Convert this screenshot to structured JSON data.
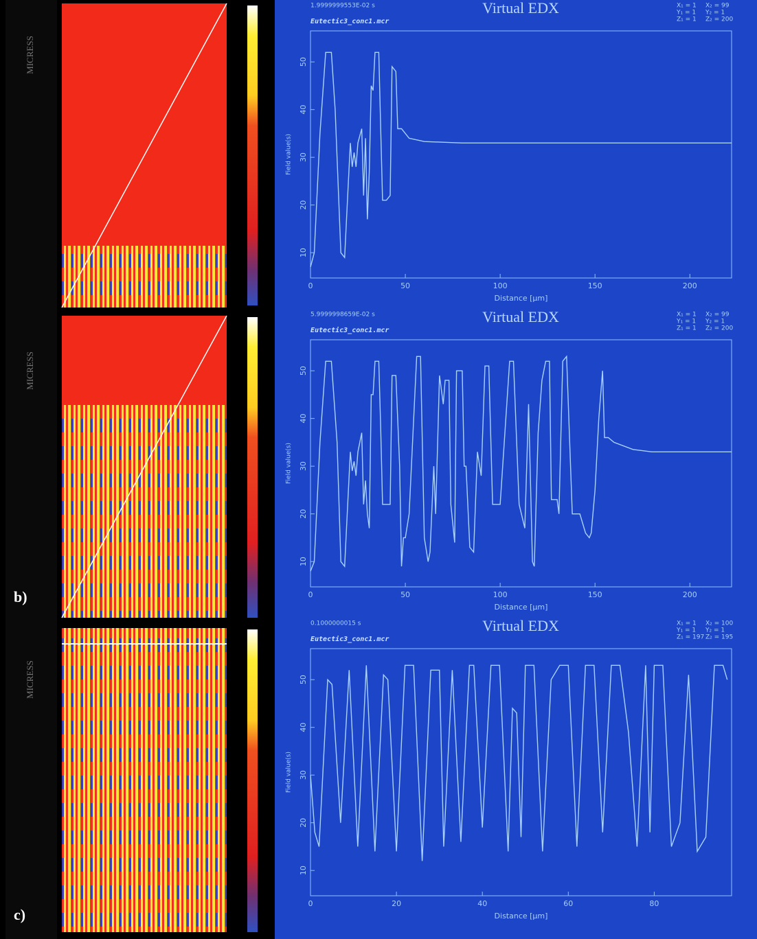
{
  "micress_labels": [
    "MICRESS",
    "MICRESS",
    "MICRESS"
  ],
  "panel_labels": [
    "b)",
    "c)"
  ],
  "chart_data": [
    {
      "type": "line",
      "title": "Virtual EDX",
      "time": "1.9999999553E-02 s",
      "file": "Eutectic3_conc1.mcr",
      "coords": [
        "X₁ = 1",
        "X₂ = 99",
        "Y₁ = 1",
        "Y₂ = 1",
        "Z₁ = 1",
        "Z₂ = 200"
      ],
      "x_label": "Distance [μm]",
      "y_label": "Field value(s)",
      "color": "#a9d2ff",
      "xlim": [
        0,
        222
      ],
      "xticks": [
        0,
        50,
        100,
        150,
        200
      ],
      "ylim": [
        4.7,
        56.5
      ],
      "yticks": [
        10,
        20,
        30,
        40,
        50
      ],
      "x": [
        0,
        2,
        5,
        8,
        11,
        13,
        16,
        18,
        20,
        21,
        22,
        23,
        24,
        25,
        27,
        28,
        29,
        30,
        31,
        32,
        33,
        34,
        36,
        37,
        38,
        40,
        42,
        43,
        45,
        46,
        48,
        52,
        60,
        80,
        222
      ],
      "values": [
        7,
        10,
        35,
        52,
        52,
        40,
        10,
        9,
        25,
        33,
        28,
        31,
        28,
        33,
        36,
        22,
        34,
        17,
        27,
        45,
        44,
        52,
        52,
        36,
        21,
        21,
        22,
        49,
        48,
        36,
        36,
        34,
        33.3,
        33,
        33
      ]
    },
    {
      "type": "line",
      "title": "Virtual EDX",
      "time": "5.9999998659E-02 s",
      "file": "Eutectic3_conc1.mcr",
      "coords": [
        "X₁ = 1",
        "X₂ = 99",
        "Y₁ = 1",
        "Y₂ = 1",
        "Z₁ = 1",
        "Z₂ = 200"
      ],
      "x_label": "Distance [μm]",
      "y_label": "Field value(s)",
      "color": "#a9d2ff",
      "xlim": [
        0,
        222
      ],
      "xticks": [
        0,
        50,
        100,
        150,
        200
      ],
      "ylim": [
        4.7,
        56.5
      ],
      "yticks": [
        10,
        20,
        30,
        40,
        50
      ],
      "x": [
        0,
        2,
        5,
        8,
        11,
        14,
        16,
        18,
        20,
        21,
        22,
        23,
        24,
        25,
        27,
        28,
        29,
        30,
        31,
        32,
        33,
        34,
        36,
        37,
        38,
        40,
        42,
        43,
        45,
        47,
        48,
        49,
        50,
        52,
        55,
        56,
        58,
        60,
        62,
        63,
        65,
        66,
        68,
        70,
        71,
        73,
        74,
        76,
        77,
        80,
        81,
        82,
        84,
        86,
        88,
        90,
        92,
        94,
        96,
        98,
        100,
        105,
        107,
        110,
        113,
        115,
        117,
        118,
        120,
        122,
        124,
        126,
        127,
        130,
        131,
        133,
        135,
        138,
        142,
        145,
        147,
        148,
        150,
        152,
        154,
        155,
        157,
        160,
        170,
        180,
        222
      ],
      "values": [
        8,
        10,
        35,
        52,
        52,
        35,
        10,
        9,
        25,
        33,
        29,
        31,
        28,
        33,
        37,
        22,
        27,
        20,
        17,
        45,
        45,
        52,
        52,
        38,
        22,
        22,
        22,
        49,
        49,
        30,
        9,
        15,
        15,
        20,
        45,
        53,
        53,
        15,
        10,
        12,
        30,
        20,
        49,
        43,
        48,
        48,
        22,
        14,
        50,
        50,
        30,
        30,
        13,
        12,
        33,
        28,
        51,
        51,
        22,
        22,
        22,
        52,
        52,
        22,
        17,
        43,
        10,
        9,
        37,
        48,
        52,
        52,
        23,
        23,
        20,
        52,
        53,
        20,
        20,
        16,
        15,
        16,
        25,
        40,
        50,
        36,
        36,
        35,
        33.5,
        33,
        33
      ]
    },
    {
      "type": "line",
      "title": "Virtual EDX",
      "time": "0.1000000015 s",
      "file": "Eutectic3_conc1.mcr",
      "coords": [
        "X₁ = 1",
        "X₂ = 100",
        "Y₁ = 1",
        "Y₂ = 1",
        "Z₁ = 197",
        "Z₂ = 195"
      ],
      "x_label": "Distance [μm]",
      "y_label": "Field value(s)",
      "color": "#a9d2ff",
      "xlim": [
        0,
        98
      ],
      "xticks": [
        0,
        20,
        40,
        60,
        80
      ],
      "ylim": [
        4.7,
        56.5
      ],
      "yticks": [
        10,
        20,
        30,
        40,
        50
      ],
      "x": [
        0,
        1,
        2,
        4,
        5,
        7,
        9,
        11,
        13,
        15,
        17,
        18,
        20,
        22,
        24,
        26,
        28,
        30,
        31,
        33,
        35,
        37,
        38,
        40,
        42,
        44,
        46,
        47,
        48,
        49,
        50,
        52,
        54,
        56,
        58,
        60,
        62,
        64,
        66,
        68,
        70,
        72,
        74,
        76,
        78,
        79,
        80,
        82,
        84,
        86,
        88,
        90,
        92,
        94,
        96,
        97
      ],
      "values": [
        30,
        18,
        15,
        50,
        49,
        20,
        52,
        15,
        53,
        14,
        51,
        50,
        14,
        53,
        53,
        12,
        52,
        52,
        15,
        52,
        16,
        53,
        53,
        19,
        53,
        53,
        14,
        44,
        43,
        17,
        53,
        53,
        14,
        50,
        53,
        53,
        15,
        53,
        53,
        18,
        53,
        53,
        39,
        15,
        53,
        18,
        53,
        53,
        15,
        20,
        51,
        14,
        17,
        53,
        53,
        50
      ]
    }
  ]
}
